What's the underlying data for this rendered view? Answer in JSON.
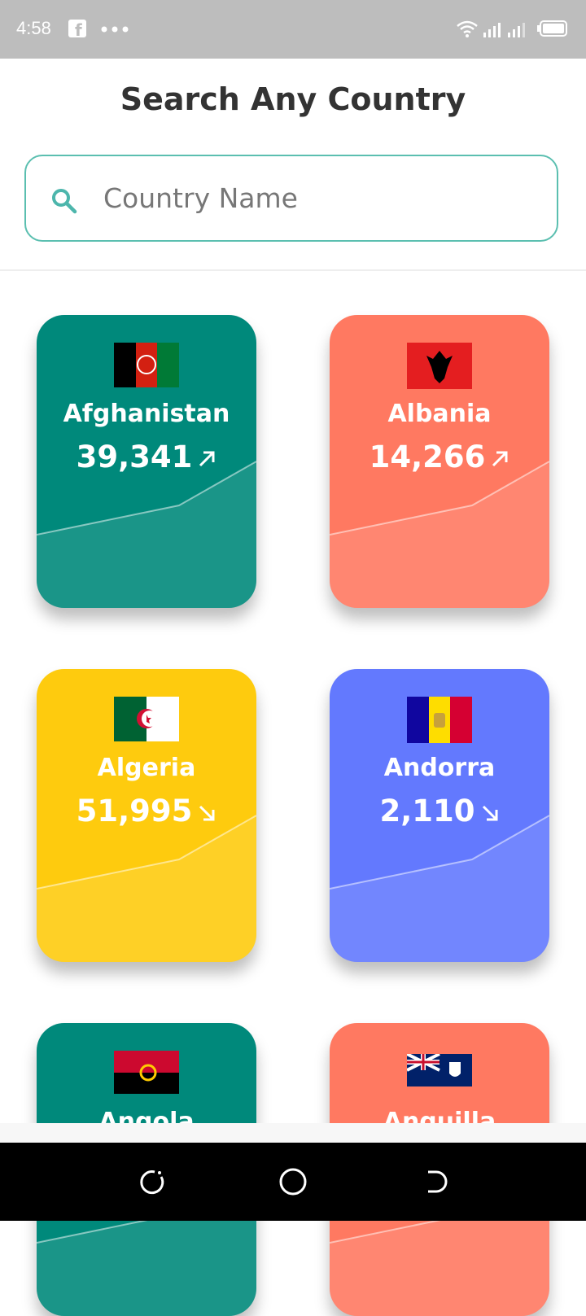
{
  "status_bar": {
    "time": "4:58"
  },
  "header": {
    "title": "Search Any Country"
  },
  "search": {
    "placeholder": "Country Name"
  },
  "cards": [
    {
      "name": "Afghanistan",
      "value": "39,341"
    },
    {
      "name": "Albania",
      "value": "14,266"
    },
    {
      "name": "Algeria",
      "value": "51,995"
    },
    {
      "name": "Andorra",
      "value": "2,110"
    },
    {
      "name": "Angola"
    },
    {
      "name": "Anguilla"
    }
  ]
}
